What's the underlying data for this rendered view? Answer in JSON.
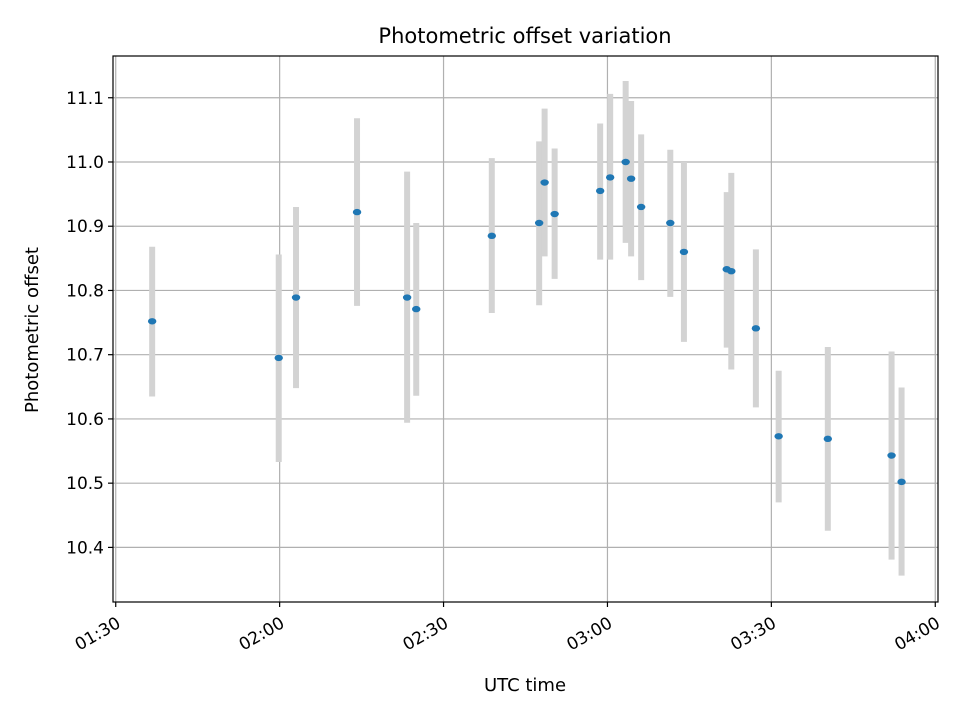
{
  "chart_data": {
    "type": "scatter",
    "title": "Photometric offset variation",
    "xlabel": "UTC time",
    "ylabel": "Photometric offset",
    "x_tick_labels": [
      "01:30",
      "02:00",
      "02:30",
      "03:00",
      "03:30",
      "04:00"
    ],
    "y_tick_labels": [
      "10.4",
      "10.5",
      "10.6",
      "10.7",
      "10.8",
      "10.9",
      "11.0",
      "11.1"
    ],
    "xlim": [
      "01:29:30",
      "04:00:30"
    ],
    "ylim": [
      10.315,
      11.165
    ],
    "grid": true,
    "marker_color": "#1f77b4",
    "errorbar_color": "#d3d3d3",
    "series": [
      {
        "points": [
          {
            "x": "01:36:40",
            "y": 10.752,
            "low": 10.635,
            "high": 10.868
          },
          {
            "x": "01:59:50",
            "y": 10.695,
            "low": 10.533,
            "high": 10.856
          },
          {
            "x": "02:03:00",
            "y": 10.789,
            "low": 10.648,
            "high": 10.93
          },
          {
            "x": "02:14:10",
            "y": 10.922,
            "low": 10.776,
            "high": 11.068
          },
          {
            "x": "02:23:20",
            "y": 10.789,
            "low": 10.594,
            "high": 10.985
          },
          {
            "x": "02:25:00",
            "y": 10.771,
            "low": 10.636,
            "high": 10.905
          },
          {
            "x": "02:38:50",
            "y": 10.885,
            "low": 10.765,
            "high": 11.006
          },
          {
            "x": "02:47:30",
            "y": 10.905,
            "low": 10.777,
            "high": 11.032
          },
          {
            "x": "02:48:30",
            "y": 10.968,
            "low": 10.853,
            "high": 11.083
          },
          {
            "x": "02:50:20",
            "y": 10.919,
            "low": 10.818,
            "high": 11.021
          },
          {
            "x": "02:58:40",
            "y": 10.955,
            "low": 10.848,
            "high": 11.06
          },
          {
            "x": "03:00:30",
            "y": 10.976,
            "low": 10.848,
            "high": 11.106
          },
          {
            "x": "03:03:20",
            "y": 11.0,
            "low": 10.874,
            "high": 11.126
          },
          {
            "x": "03:04:20",
            "y": 10.974,
            "low": 10.853,
            "high": 11.095
          },
          {
            "x": "03:06:10",
            "y": 10.93,
            "low": 10.816,
            "high": 11.043
          },
          {
            "x": "03:11:30",
            "y": 10.905,
            "low": 10.79,
            "high": 11.019
          },
          {
            "x": "03:14:00",
            "y": 10.86,
            "low": 10.72,
            "high": 11.0
          },
          {
            "x": "03:21:50",
            "y": 10.833,
            "low": 10.711,
            "high": 10.953
          },
          {
            "x": "03:22:40",
            "y": 10.83,
            "low": 10.677,
            "high": 10.983
          },
          {
            "x": "03:27:10",
            "y": 10.741,
            "low": 10.618,
            "high": 10.864
          },
          {
            "x": "03:31:20",
            "y": 10.573,
            "low": 10.47,
            "high": 10.675
          },
          {
            "x": "03:40:20",
            "y": 10.569,
            "low": 10.426,
            "high": 10.712
          },
          {
            "x": "03:52:00",
            "y": 10.543,
            "low": 10.381,
            "high": 10.705
          },
          {
            "x": "03:53:50",
            "y": 10.502,
            "low": 10.356,
            "high": 10.649
          }
        ]
      }
    ]
  }
}
